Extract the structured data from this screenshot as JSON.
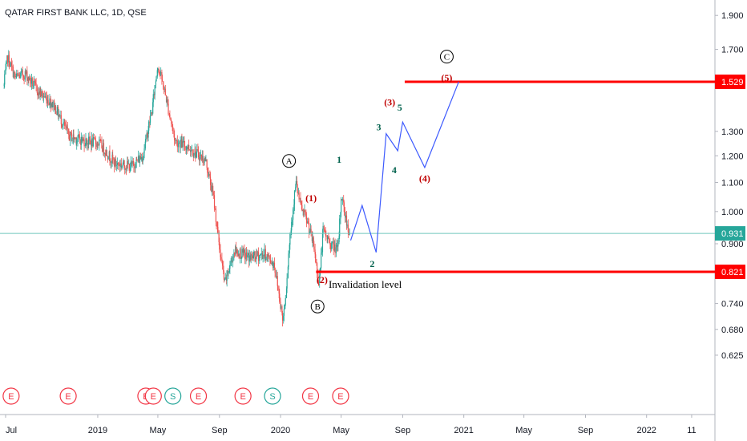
{
  "symbol_title": "QATAR FIRST BANK LLC, 1D, QSE",
  "colors": {
    "up": "#26a69a",
    "down": "#ef5350",
    "resistance": "#ff0000",
    "price_line": "#6fc7bd",
    "projection": "#3d5afe",
    "wave_red": "#c00000",
    "wave_green": "#00614c",
    "grid": "#e0e3eb",
    "axis_text": "#131722",
    "event_red": "#f23645",
    "event_green": "#26a69a"
  },
  "chart_data": {
    "type": "candlestick",
    "title": "QATAR FIRST BANK LLC, 1D, QSE",
    "y_scale": "log",
    "ylim": [
      0.625,
      1.9
    ],
    "x_ticks": [
      "Jul",
      "2019",
      "May",
      "Sep",
      "2020",
      "May",
      "Sep",
      "2021",
      "May",
      "Sep",
      "2022",
      "11"
    ],
    "x_tick_dates": [
      "2018-07-01",
      "2019-01-01",
      "2019-05-01",
      "2019-09-01",
      "2020-01-01",
      "2020-05-01",
      "2020-09-01",
      "2021-01-01",
      "2021-05-01",
      "2021-09-01",
      "2022-01-01",
      "2022-04-01"
    ],
    "y_ticks": [
      1.9,
      1.7,
      1.3,
      1.2,
      1.1,
      1.0,
      0.9,
      0.74,
      0.68,
      0.625
    ],
    "y_tick_labels": [
      "1.900",
      "1.700",
      "1.300",
      "1.200",
      "1.100",
      "1.000",
      "0.900",
      "0.740",
      "0.680",
      "0.625"
    ],
    "price_path": [
      [
        "2018-06-28",
        1.51
      ],
      [
        "2018-07-05",
        1.66
      ],
      [
        "2018-07-20",
        1.55
      ],
      [
        "2018-08-10",
        1.57
      ],
      [
        "2018-09-05",
        1.48
      ],
      [
        "2018-10-05",
        1.42
      ],
      [
        "2018-11-05",
        1.28
      ],
      [
        "2018-12-05",
        1.26
      ],
      [
        "2019-01-05",
        1.25
      ],
      [
        "2019-02-05",
        1.17
      ],
      [
        "2019-03-10",
        1.16
      ],
      [
        "2019-04-01",
        1.2
      ],
      [
        "2019-04-20",
        1.4
      ],
      [
        "2019-05-01",
        1.62
      ],
      [
        "2019-05-15",
        1.48
      ],
      [
        "2019-06-05",
        1.26
      ],
      [
        "2019-07-05",
        1.23
      ],
      [
        "2019-08-05",
        1.18
      ],
      [
        "2019-08-20",
        1.05
      ],
      [
        "2019-09-03",
        0.87
      ],
      [
        "2019-09-12",
        0.79
      ],
      [
        "2019-10-01",
        0.88
      ],
      [
        "2019-11-01",
        0.86
      ],
      [
        "2019-12-01",
        0.87
      ],
      [
        "2019-12-20",
        0.84
      ],
      [
        "2020-01-01",
        0.74
      ],
      [
        "2020-01-06",
        0.7
      ],
      [
        "2020-01-12",
        0.77
      ],
      [
        "2020-01-20",
        0.92
      ],
      [
        "2020-02-01",
        1.1
      ],
      [
        "2020-02-10",
        1.02
      ],
      [
        "2020-02-25",
        0.96
      ],
      [
        "2020-03-08",
        0.89
      ],
      [
        "2020-03-18",
        0.79
      ],
      [
        "2020-03-26",
        0.94
      ],
      [
        "2020-04-10",
        0.9
      ],
      [
        "2020-04-25",
        0.88
      ],
      [
        "2020-05-02",
        1.06
      ],
      [
        "2020-05-10",
        0.98
      ],
      [
        "2020-05-18",
        0.931
      ]
    ],
    "price_line": 0.931,
    "levels": [
      {
        "price": 1.529,
        "label": "1.529",
        "from": "2020-09-05",
        "annotation": ""
      },
      {
        "price": 0.821,
        "label": "0.821",
        "from": "2020-03-12",
        "annotation": "Invalidation level"
      }
    ],
    "current_price_label": "0.931",
    "projection_path": [
      [
        "2020-05-20",
        0.91
      ],
      [
        "2020-06-12",
        1.02
      ],
      [
        "2020-07-10",
        0.875
      ],
      [
        "2020-07-30",
        1.29
      ],
      [
        "2020-08-22",
        1.22
      ],
      [
        "2020-09-01",
        1.34
      ],
      [
        "2020-10-15",
        1.155
      ],
      [
        "2020-12-22",
        1.53
      ]
    ],
    "wave_labels": [
      {
        "text": "A",
        "date": "2020-01-18",
        "price": 1.18,
        "style": "circled"
      },
      {
        "text": "B",
        "date": "2020-03-15",
        "price": 0.733,
        "style": "circled"
      },
      {
        "text": "C",
        "date": "2020-11-28",
        "price": 1.66,
        "style": "circled"
      },
      {
        "text": "(1)",
        "date": "2020-03-02",
        "price": 1.045,
        "style": "red"
      },
      {
        "text": "(2)",
        "date": "2020-03-24",
        "price": 0.8,
        "style": "red"
      },
      {
        "text": "(3)",
        "date": "2020-08-06",
        "price": 1.43,
        "style": "red"
      },
      {
        "text": "(4)",
        "date": "2020-10-15",
        "price": 1.115,
        "style": "red"
      },
      {
        "text": "(5)",
        "date": "2020-11-28",
        "price": 1.55,
        "style": "red"
      },
      {
        "text": "1",
        "date": "2020-04-27",
        "price": 1.185,
        "style": "green"
      },
      {
        "text": "2",
        "date": "2020-07-02",
        "price": 0.843,
        "style": "green"
      },
      {
        "text": "3",
        "date": "2020-07-15",
        "price": 1.318,
        "style": "green"
      },
      {
        "text": "4",
        "date": "2020-08-15",
        "price": 1.145,
        "style": "green"
      },
      {
        "text": "5",
        "date": "2020-08-26",
        "price": 1.405,
        "style": "green"
      }
    ],
    "events": [
      {
        "date": "2018-07-12",
        "letter": "E"
      },
      {
        "date": "2018-11-03",
        "letter": "E"
      },
      {
        "date": "2019-04-07",
        "letter": "E"
      },
      {
        "date": "2019-04-22",
        "letter": "E"
      },
      {
        "date": "2019-05-31",
        "letter": "S"
      },
      {
        "date": "2019-07-21",
        "letter": "E"
      },
      {
        "date": "2019-10-18",
        "letter": "E"
      },
      {
        "date": "2019-12-16",
        "letter": "S"
      },
      {
        "date": "2020-03-01",
        "letter": "E"
      },
      {
        "date": "2020-04-30",
        "letter": "E"
      }
    ]
  }
}
